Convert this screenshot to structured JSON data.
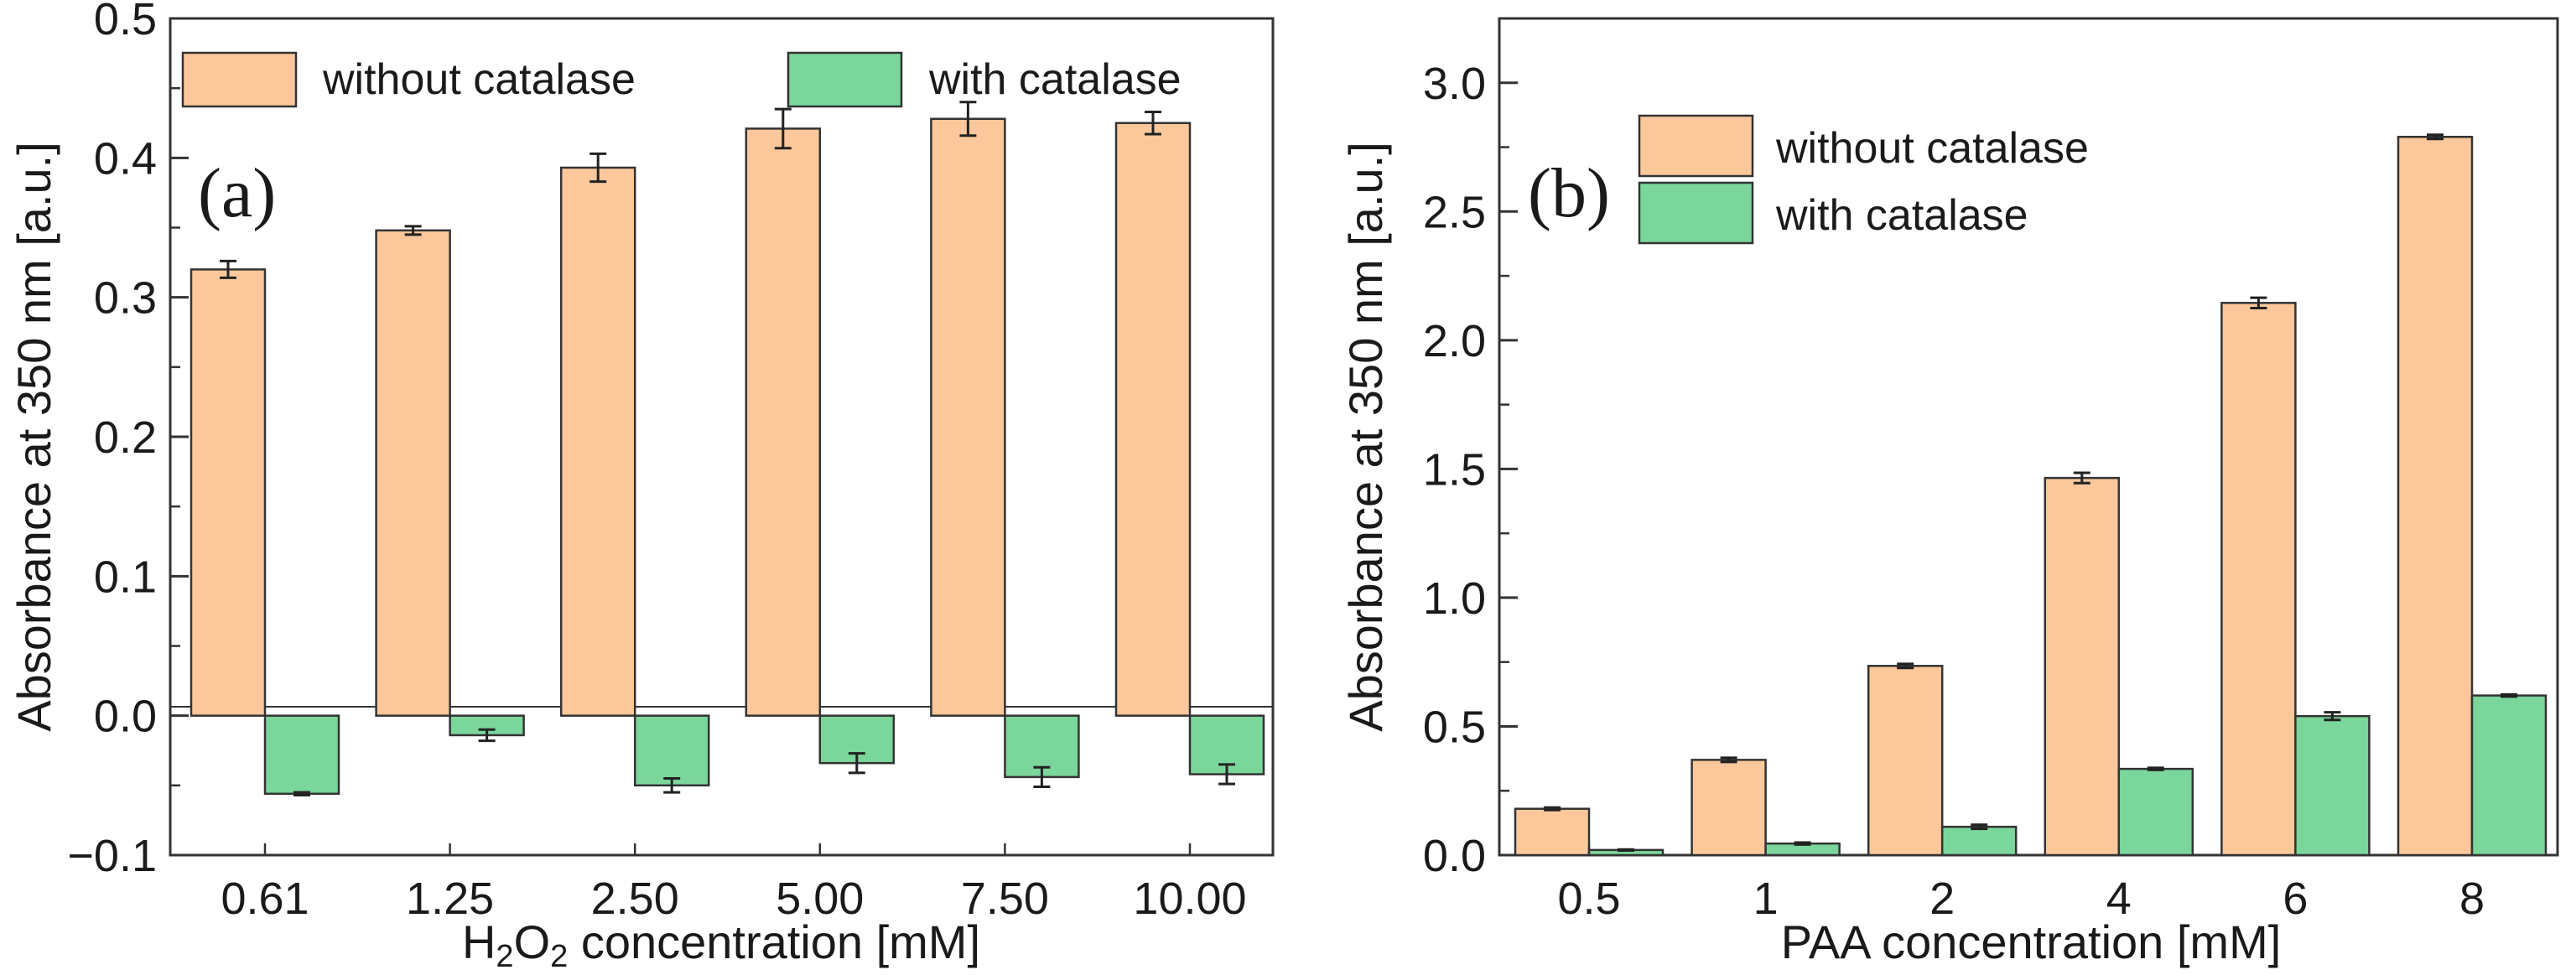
{
  "chart_data": [
    {
      "type": "bar",
      "panel_label": "(a)",
      "categories": [
        "0.61",
        "1.25",
        "2.50",
        "5.00",
        "7.50",
        "10.00"
      ],
      "series": [
        {
          "name": "without catalase",
          "color": "#fcc89b",
          "values": [
            0.32,
            0.348,
            0.393,
            0.421,
            0.428,
            0.425
          ],
          "errors": [
            0.006,
            0.003,
            0.01,
            0.014,
            0.012,
            0.008
          ]
        },
        {
          "name": "with catalase",
          "color": "#7bd69c",
          "values": [
            -0.056,
            -0.014,
            -0.05,
            -0.034,
            -0.044,
            -0.042
          ],
          "errors": [
            0.001,
            0.004,
            0.005,
            0.007,
            0.007,
            0.007
          ]
        }
      ],
      "xlabel": {
        "pre": "H",
        "sub": "2",
        "mid": "O",
        "sub2": "2",
        "post": " concentration [mM]"
      },
      "ylabel": "Absorbance at 350 nm [a.u.]",
      "ylim": [
        -0.1,
        0.5
      ],
      "yticks": [
        -0.1,
        0.0,
        0.1,
        0.2,
        0.3,
        0.4,
        0.5
      ],
      "ytick_labels": [
        "−0.1",
        "0.0",
        "0.1",
        "0.2",
        "0.3",
        "0.4",
        "0.5"
      ],
      "legend": "top, two columns",
      "grid": false
    },
    {
      "type": "bar",
      "panel_label": "(b)",
      "categories": [
        "0.5",
        "1",
        "2",
        "4",
        "6",
        "8"
      ],
      "series": [
        {
          "name": "without catalase",
          "color": "#fcc89b",
          "values": [
            0.18,
            0.37,
            0.735,
            1.465,
            2.145,
            2.79
          ],
          "errors": [
            0.005,
            0.008,
            0.008,
            0.02,
            0.02,
            0.008
          ]
        },
        {
          "name": "with catalase",
          "color": "#7bd69c",
          "values": [
            0.02,
            0.045,
            0.11,
            0.335,
            0.54,
            0.62
          ],
          "errors": [
            0.002,
            0.004,
            0.008,
            0.004,
            0.015,
            0.004
          ]
        }
      ],
      "xlabel": "PAA concentration [mM]",
      "ylabel": "Absorbance at 350 nm [a.u.]",
      "ylim": [
        0.0,
        3.25
      ],
      "yticks": [
        0.0,
        0.5,
        1.0,
        1.5,
        2.0,
        2.5,
        3.0
      ],
      "ytick_labels": [
        "0.0",
        "0.5",
        "1.0",
        "1.5",
        "2.0",
        "2.5",
        "3.0"
      ],
      "legend": "upper-left, stacked",
      "grid": false
    }
  ]
}
